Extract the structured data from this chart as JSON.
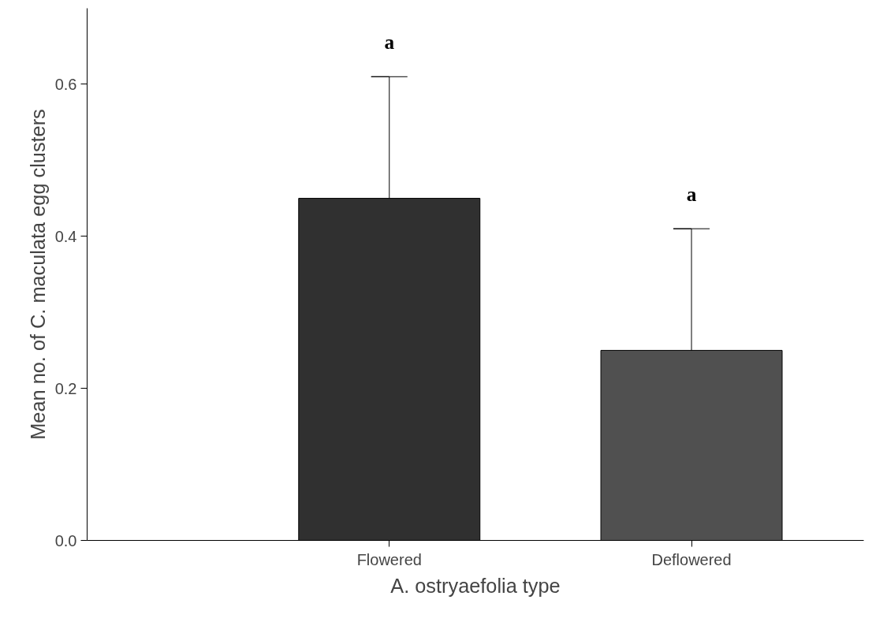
{
  "chart_data": {
    "type": "bar",
    "xlabel": "A. ostryaefolia type",
    "ylabel": "Mean no. of C. maculata egg clusters",
    "categories": [
      "Flowered",
      "Deflowered"
    ],
    "values": [
      0.45,
      0.25
    ],
    "colors": [
      "#303030",
      "#505050"
    ],
    "errors": [
      [
        0.45,
        0.61
      ],
      [
        0.25,
        0.41
      ]
    ],
    "ylim": [
      0,
      0.7
    ],
    "yticks": [
      {
        "value": 0,
        "label": "0.0"
      },
      {
        "value": 0.2,
        "label": "0.2"
      },
      {
        "value": 0.4,
        "label": "0.4"
      },
      {
        "value": 0.6,
        "label": "0.6"
      }
    ],
    "grid": false,
    "annotations": [
      {
        "text": "a",
        "x": "Flowered",
        "y": 0.61
      },
      {
        "text": "a",
        "x": "Deflowered",
        "y": 0.41
      }
    ]
  }
}
